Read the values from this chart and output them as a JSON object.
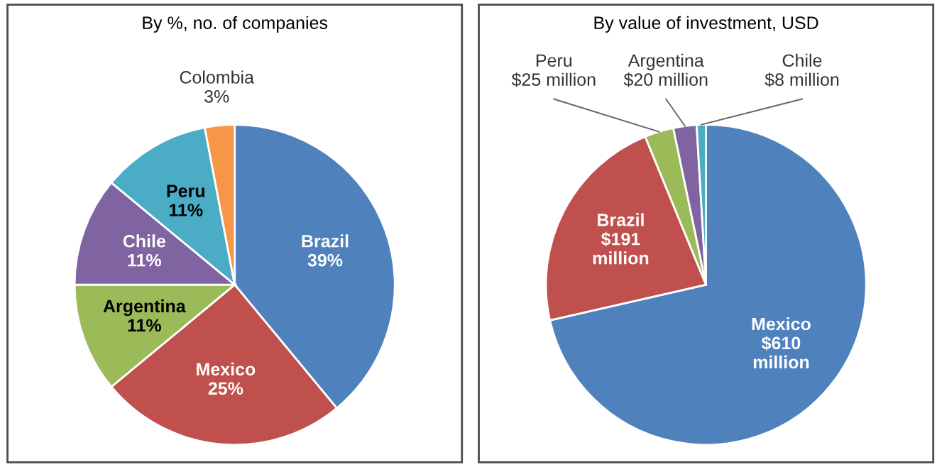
{
  "chart_data": [
    {
      "type": "pie",
      "title": "By %, no. of companies",
      "categories": [
        "Brazil",
        "Mexico",
        "Argentina",
        "Chile",
        "Peru",
        "Colombia"
      ],
      "values": [
        39,
        25,
        11,
        11,
        11,
        3
      ],
      "colors": [
        "#4f81bd",
        "#c0504d",
        "#9bbb59",
        "#8064a2",
        "#4bacc6",
        "#f79646"
      ],
      "value_labels": [
        "39%",
        "25%",
        "11%",
        "11%",
        "11%",
        "3%"
      ]
    },
    {
      "type": "pie",
      "title": "By value of investment, USD",
      "categories": [
        "Mexico",
        "Brazil",
        "Peru",
        "Argentina",
        "Chile"
      ],
      "values": [
        610,
        191,
        25,
        20,
        8
      ],
      "colors": [
        "#4f81bd",
        "#c0504d",
        "#9bbb59",
        "#8064a2",
        "#4bacc6"
      ],
      "value_labels": [
        "$610 million",
        "$191 million",
        "$25 million",
        "$20 million",
        "$8 million"
      ]
    }
  ]
}
